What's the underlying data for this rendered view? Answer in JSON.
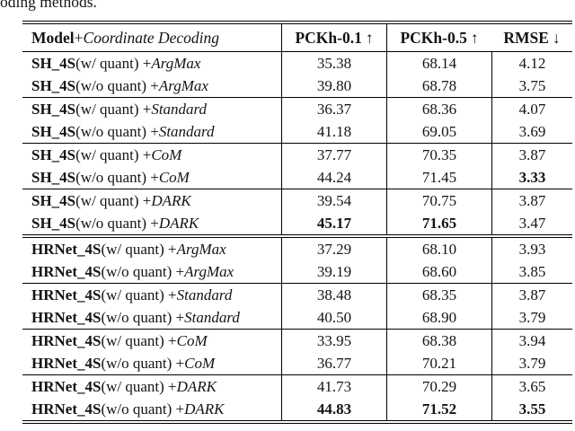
{
  "caption_fragment": "oding methods.",
  "table": {
    "header": {
      "model_bold": "Model",
      "model_plus": " + ",
      "model_italic": "Coordinate Decoding",
      "columns": [
        {
          "label": "PCKh-0.1",
          "arrow": "↑"
        },
        {
          "label": "PCKh-0.5",
          "arrow": "↑"
        },
        {
          "label": "RMSE",
          "arrow": "↓"
        }
      ]
    },
    "groups": [
      {
        "rows": [
          {
            "model": "SH_4S",
            "variant": " (w/ quant) + ",
            "method": "ArgMax",
            "pckh01": "35.38",
            "pckh05": "68.14",
            "rmse": "4.12"
          },
          {
            "model": "SH_4S",
            "variant": " (w/o quant) + ",
            "method": "ArgMax",
            "pckh01": "39.80",
            "pckh05": "68.78",
            "rmse": "3.75"
          }
        ]
      },
      {
        "rows": [
          {
            "model": "SH_4S",
            "variant": " (w/ quant) + ",
            "method": "Standard",
            "pckh01": "36.37",
            "pckh05": "68.36",
            "rmse": "4.07"
          },
          {
            "model": "SH_4S",
            "variant": " (w/o quant) + ",
            "method": "Standard",
            "pckh01": "41.18",
            "pckh05": "69.05",
            "rmse": "3.69"
          }
        ]
      },
      {
        "rows": [
          {
            "model": "SH_4S",
            "variant": " (w/ quant) + ",
            "method": "CoM",
            "pckh01": "37.77",
            "pckh05": "70.35",
            "rmse": "3.87"
          },
          {
            "model": "SH_4S",
            "variant": " (w/o quant) + ",
            "method": "CoM",
            "pckh01": "44.24",
            "pckh05": "71.45",
            "rmse": "3.33"
          }
        ]
      },
      {
        "rows": [
          {
            "model": "SH_4S",
            "variant": " (w/ quant) + ",
            "method": "DARK",
            "pckh01": "39.54",
            "pckh05": "70.75",
            "rmse": "3.87"
          },
          {
            "model": "SH_4S",
            "variant": " (w/o quant) + ",
            "method": "DARK",
            "pckh01": "45.17",
            "pckh05": "71.65",
            "rmse": "3.47"
          }
        ]
      },
      {
        "rows": [
          {
            "model": "HRNet_4S",
            "variant": " (w/ quant) + ",
            "method": "ArgMax",
            "pckh01": "37.29",
            "pckh05": "68.10",
            "rmse": "3.93"
          },
          {
            "model": "HRNet_4S",
            "variant": " (w/o quant) + ",
            "method": "ArgMax",
            "pckh01": "39.19",
            "pckh05": "68.60",
            "rmse": "3.85"
          }
        ]
      },
      {
        "rows": [
          {
            "model": "HRNet_4S",
            "variant": " (w/ quant) + ",
            "method": "Standard",
            "pckh01": "38.48",
            "pckh05": "68.35",
            "rmse": "3.87"
          },
          {
            "model": "HRNet_4S",
            "variant": " (w/o quant) + ",
            "method": "Standard",
            "pckh01": "40.50",
            "pckh05": "68.90",
            "rmse": "3.79"
          }
        ]
      },
      {
        "rows": [
          {
            "model": "HRNet_4S",
            "variant": " (w/ quant) + ",
            "method": "CoM",
            "pckh01": "33.95",
            "pckh05": "68.38",
            "rmse": "3.94"
          },
          {
            "model": "HRNet_4S",
            "variant": " (w/o quant) + ",
            "method": "CoM",
            "pckh01": "36.77",
            "pckh05": "70.21",
            "rmse": "3.79"
          }
        ]
      },
      {
        "rows": [
          {
            "model": "HRNet_4S",
            "variant": " (w/ quant) + ",
            "method": "DARK",
            "pckh01": "41.73",
            "pckh05": "70.29",
            "rmse": "3.65"
          },
          {
            "model": "HRNet_4S",
            "variant": " (w/o quant) + ",
            "method": "DARK",
            "pckh01": "44.83",
            "pckh05": "71.52",
            "rmse": "3.55"
          }
        ]
      }
    ]
  }
}
